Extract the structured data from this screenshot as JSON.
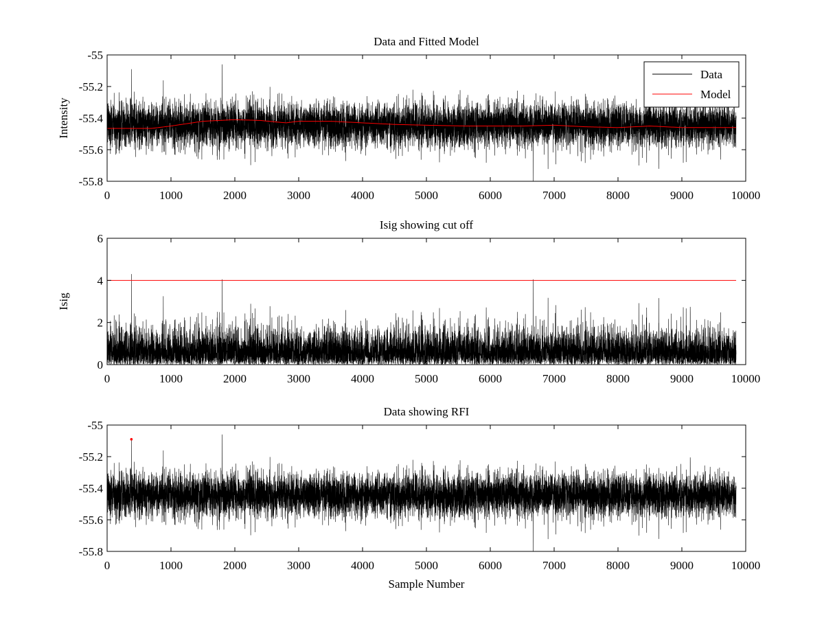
{
  "colors": {
    "data_line": "#000000",
    "model_line": "#ff0000",
    "background": "#ffffff"
  },
  "chart_data": [
    {
      "type": "line",
      "title": "Data and Fitted Model",
      "xlabel": "",
      "ylabel": "Intensity",
      "xlim": [
        0,
        10000
      ],
      "ylim": [
        -55.8,
        -55
      ],
      "xticks": [
        0,
        1000,
        2000,
        3000,
        4000,
        5000,
        6000,
        7000,
        8000,
        9000,
        10000
      ],
      "yticks": [
        -55,
        -55.2,
        -55.4,
        -55.6,
        -55.8
      ],
      "ytick_labels": [
        "-55",
        "-55.2",
        "-55.4",
        "-55.6",
        "-55.8"
      ],
      "legend": {
        "position": "top-right",
        "entries": [
          {
            "label": "Data",
            "color": "#000000"
          },
          {
            "label": "Model",
            "color": "#ff0000"
          }
        ]
      },
      "series": [
        {
          "name": "Data",
          "kind": "noise",
          "color": "#000000",
          "n_samples": 9850,
          "mean": -55.445,
          "std": 0.07,
          "x_range": [
            0,
            9850
          ],
          "spikes": [
            {
              "x": 380,
              "y": -55.09
            },
            {
              "x": 1800,
              "y": -55.06
            },
            {
              "x": 6670,
              "y": -55.8
            }
          ]
        },
        {
          "name": "Model",
          "color": "#ff0000",
          "x": [
            0,
            700,
            1000,
            1500,
            2000,
            2400,
            2800,
            3000,
            3500,
            4000,
            4500,
            5000,
            5600,
            6000,
            6500,
            7000,
            7500,
            8000,
            8500,
            9000,
            9850
          ],
          "y": [
            -55.465,
            -55.465,
            -55.45,
            -55.42,
            -55.41,
            -55.415,
            -55.43,
            -55.42,
            -55.42,
            -55.43,
            -55.44,
            -55.445,
            -55.45,
            -55.45,
            -55.45,
            -55.445,
            -55.455,
            -55.46,
            -55.45,
            -55.46,
            -55.46
          ]
        }
      ]
    },
    {
      "type": "line",
      "title": "Isig showing cut off",
      "xlabel": "",
      "ylabel": "Isig",
      "xlim": [
        0,
        10000
      ],
      "ylim": [
        0,
        6
      ],
      "xticks": [
        0,
        1000,
        2000,
        3000,
        4000,
        5000,
        6000,
        7000,
        8000,
        9000,
        10000
      ],
      "yticks": [
        0,
        2,
        4,
        6
      ],
      "ytick_labels": [
        "0",
        "2",
        "4",
        "6"
      ],
      "series": [
        {
          "name": "Isig",
          "kind": "abs-noise",
          "color": "#000000",
          "n_samples": 9850,
          "scale": 0.8,
          "x_range": [
            0,
            9850
          ],
          "spikes": [
            {
              "x": 380,
              "y": 4.3
            },
            {
              "x": 1800,
              "y": 4.05
            },
            {
              "x": 6670,
              "y": 4.05
            }
          ]
        },
        {
          "name": "Cut off",
          "color": "#ff0000",
          "x": [
            0,
            9850
          ],
          "y": [
            4,
            4
          ]
        }
      ]
    },
    {
      "type": "line",
      "title": "Data showing RFI",
      "xlabel": "Sample Number",
      "ylabel": "",
      "xlim": [
        0,
        10000
      ],
      "ylim": [
        -55.8,
        -55
      ],
      "xticks": [
        0,
        1000,
        2000,
        3000,
        4000,
        5000,
        6000,
        7000,
        8000,
        9000,
        10000
      ],
      "yticks": [
        -55,
        -55.2,
        -55.4,
        -55.6,
        -55.8
      ],
      "ytick_labels": [
        "-55",
        "-55.2",
        "-55.4",
        "-55.6",
        "-55.8"
      ],
      "series": [
        {
          "name": "Data",
          "kind": "noise",
          "color": "#000000",
          "n_samples": 9850,
          "mean": -55.445,
          "std": 0.07,
          "x_range": [
            0,
            9850
          ],
          "spikes": [
            {
              "x": 380,
              "y": -55.09
            },
            {
              "x": 1800,
              "y": -55.06
            },
            {
              "x": 6670,
              "y": -55.8
            }
          ]
        },
        {
          "name": "RFI",
          "kind": "markers",
          "color": "#ff0000",
          "x": [
            380
          ],
          "y": [
            -55.09
          ]
        }
      ]
    }
  ]
}
